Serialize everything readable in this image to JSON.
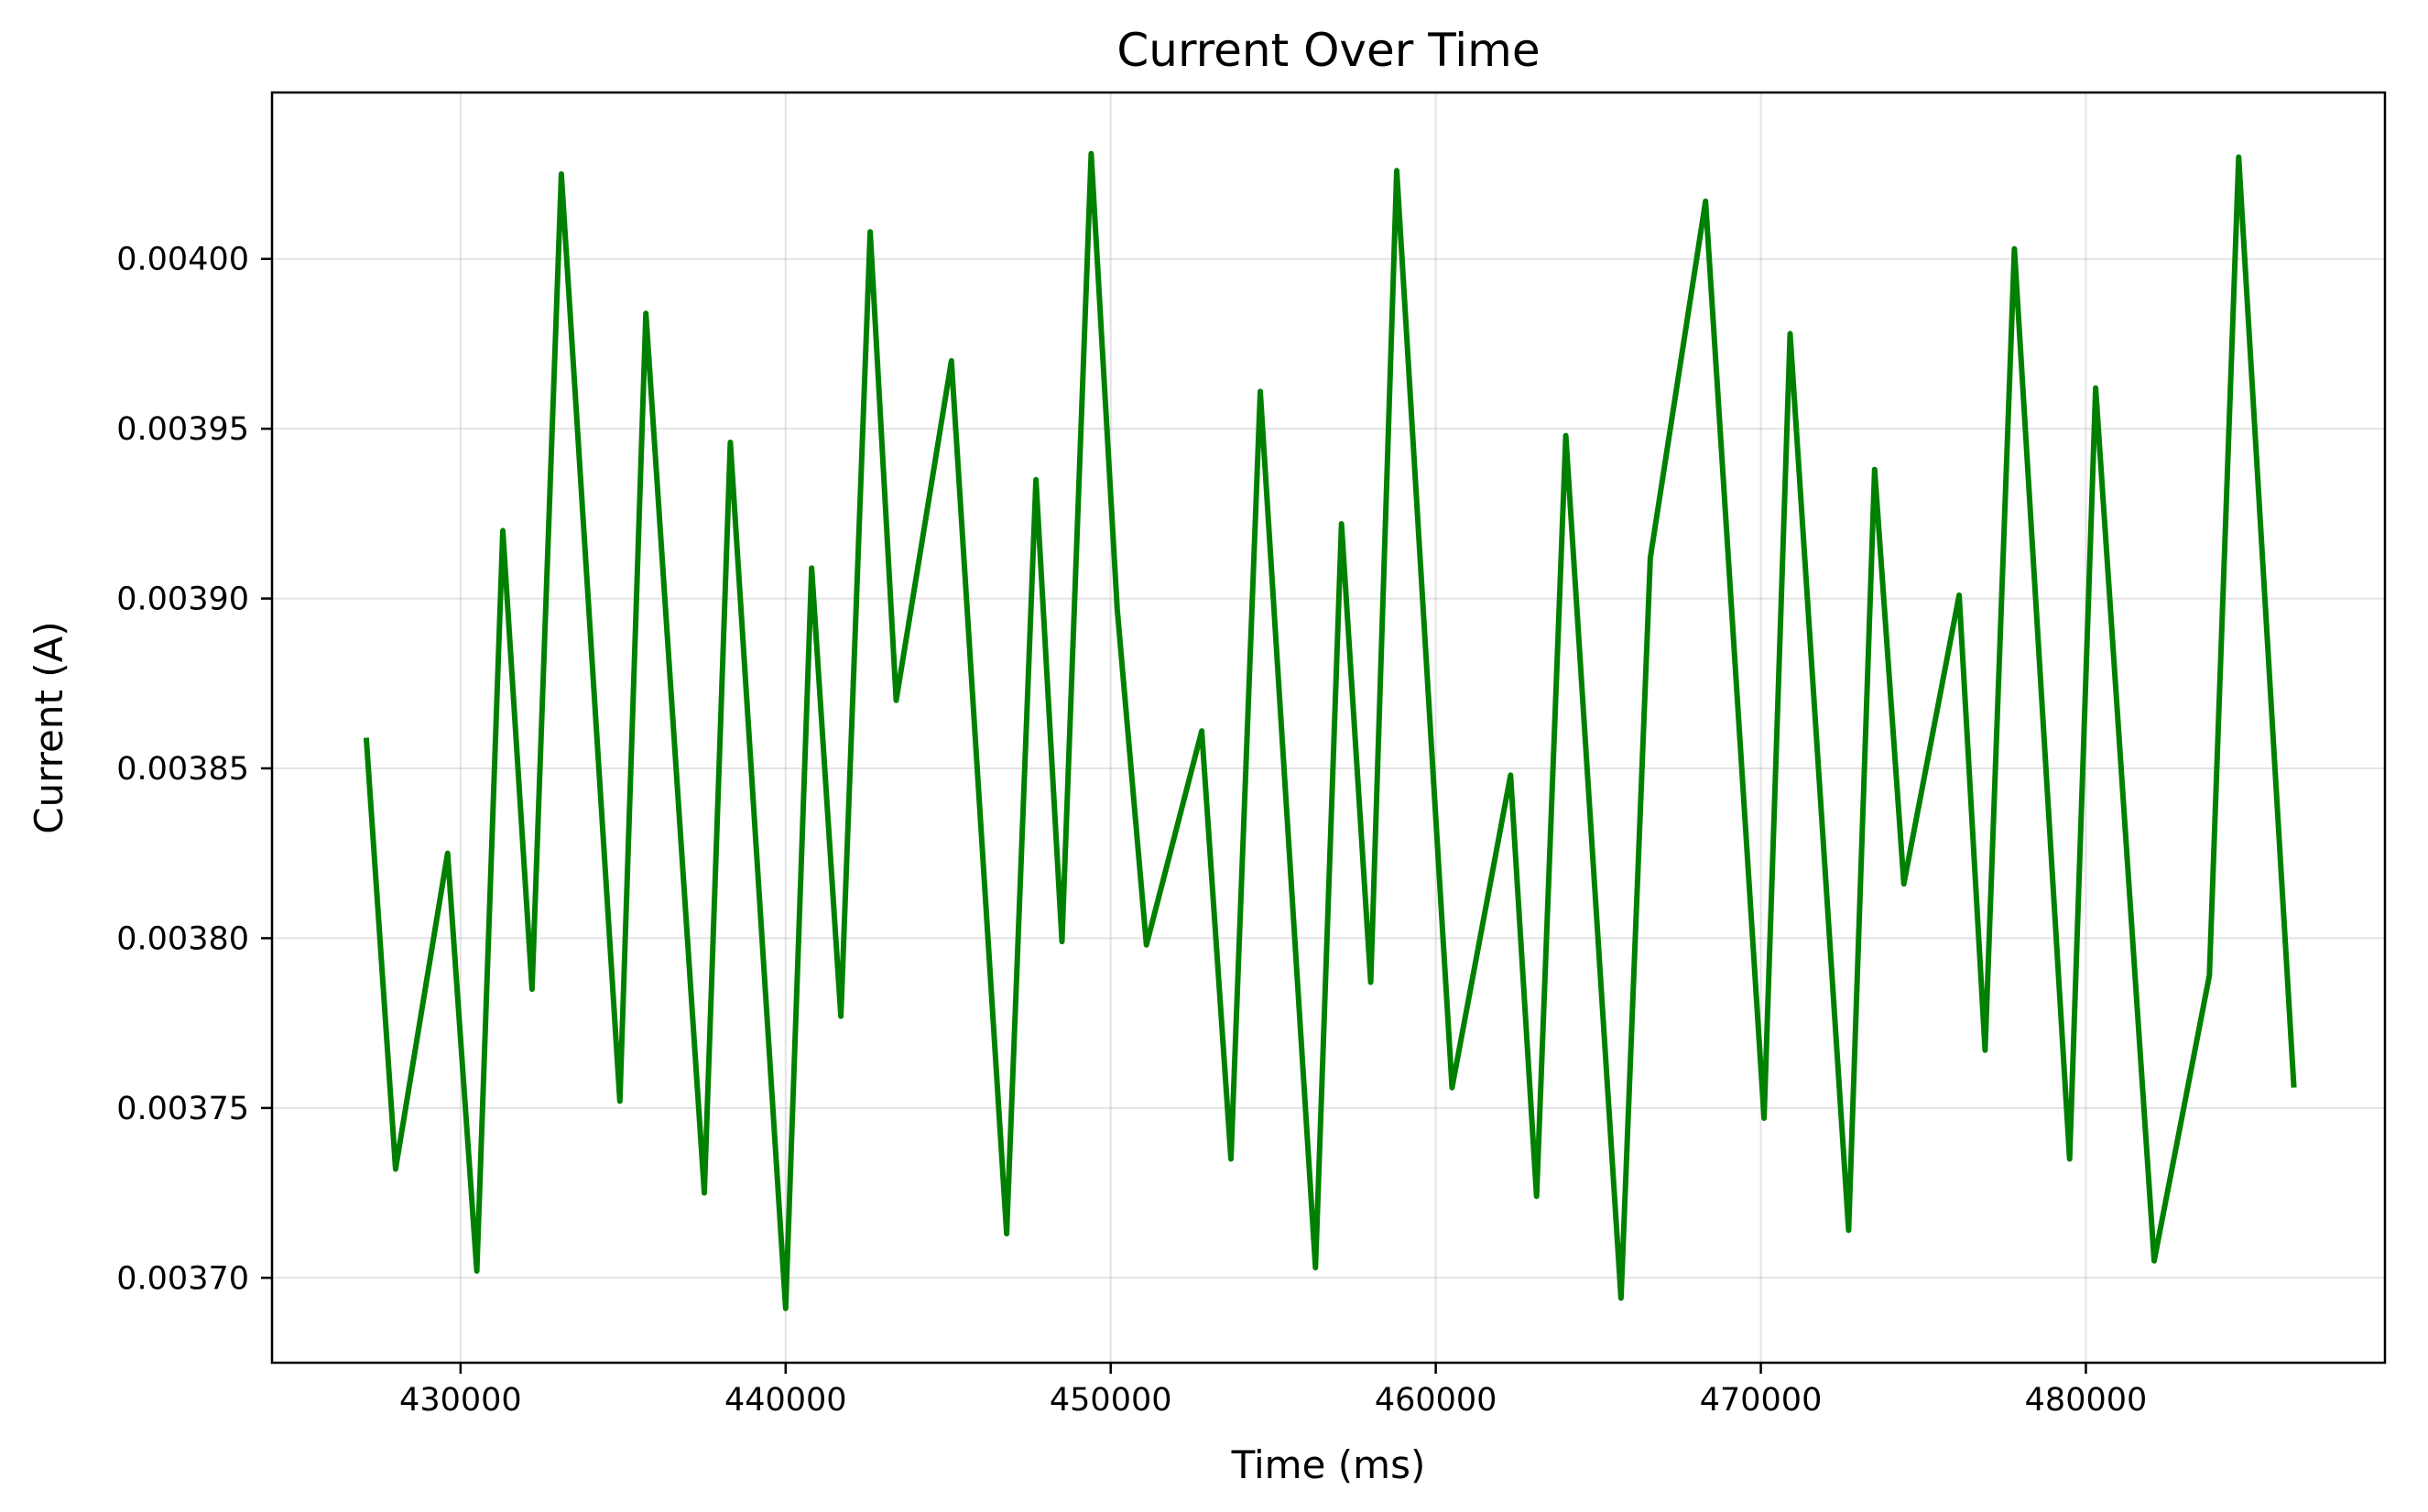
{
  "chart_data": {
    "type": "line",
    "title": "Current Over Time",
    "xlabel": "Time (ms)",
    "ylabel": "Current (A)",
    "xlim": [
      424200,
      489200
    ],
    "ylim": [
      0.003675,
      0.004049
    ],
    "x_ticks": [
      430000,
      440000,
      450000,
      460000,
      470000,
      480000
    ],
    "x_tick_labels": [
      "430000",
      "440000",
      "450000",
      "460000",
      "470000",
      "480000"
    ],
    "y_ticks": [
      0.0037,
      0.00375,
      0.0038,
      0.00385,
      0.0039,
      0.00395,
      0.004
    ],
    "y_tick_labels": [
      "0.00370",
      "0.00375",
      "0.00380",
      "0.00385",
      "0.00390",
      "0.00395",
      "0.00400"
    ],
    "grid": true,
    "color": "#008000",
    "series": [
      {
        "x": [
          427100,
          428000,
          429600,
          430500,
          431300,
          432200,
          433100,
          434900,
          435700,
          437500,
          438300,
          440000,
          440800,
          441700,
          442600,
          443400,
          445100,
          446800,
          447700,
          448500,
          449400,
          450200,
          451100,
          452800,
          453700,
          454600,
          456300,
          457100,
          458000,
          458800,
          460500,
          462300,
          463100,
          464000,
          465700,
          466600,
          468300,
          470100,
          470900,
          472700,
          473500,
          474400,
          476100,
          476900,
          477800,
          479500,
          480300,
          482100,
          483800,
          484700,
          486400
        ],
        "values": [
          0.003859,
          0.003732,
          0.003825,
          0.003702,
          0.00392,
          0.003785,
          0.004025,
          0.003752,
          0.003984,
          0.003725,
          0.003946,
          0.003691,
          0.003909,
          0.003777,
          0.004008,
          0.00387,
          0.00397,
          0.003713,
          0.003935,
          0.003799,
          0.004031,
          0.003897,
          0.003798,
          0.003861,
          0.003735,
          0.003961,
          0.003703,
          0.003922,
          0.003787,
          0.004026,
          0.003756,
          0.003848,
          0.003724,
          0.003948,
          0.003694,
          0.003912,
          0.004017,
          0.003747,
          0.003978,
          0.003714,
          0.003938,
          0.003816,
          0.003901,
          0.003767,
          0.004003,
          0.003735,
          0.003962,
          0.003705,
          0.003789,
          0.00403,
          0.003756
        ]
      }
    ]
  }
}
